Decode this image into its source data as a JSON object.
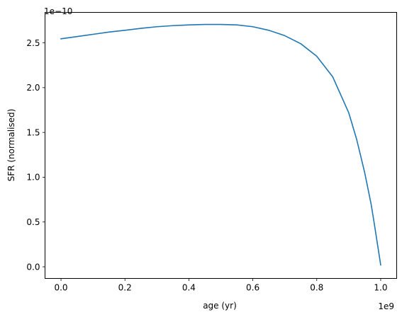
{
  "chart_data": {
    "type": "line",
    "xlabel": "age (yr)",
    "ylabel": "SFR (normalised)",
    "x_offset_label": "1e9",
    "y_offset_label": "1e−10",
    "xlim": [
      -0.05,
      1.05
    ],
    "ylim": [
      -0.13,
      2.84
    ],
    "x_ticks": [
      0.0,
      0.2,
      0.4,
      0.6,
      0.8,
      1.0
    ],
    "x_tick_labels": [
      "0.0",
      "0.2",
      "0.4",
      "0.6",
      "0.8",
      "1.0"
    ],
    "y_ticks": [
      0.0,
      0.5,
      1.0,
      1.5,
      2.0,
      2.5
    ],
    "y_tick_labels": [
      "0.0",
      "0.5",
      "1.0",
      "1.5",
      "2.0",
      "2.5"
    ],
    "grid": false,
    "series_color": "#1f77b4",
    "series": [
      {
        "x": [
          0.0,
          0.05,
          0.1,
          0.15,
          0.2,
          0.25,
          0.3,
          0.35,
          0.4,
          0.45,
          0.5,
          0.55,
          0.6,
          0.65,
          0.7,
          0.75,
          0.8,
          0.85,
          0.9,
          0.925,
          0.95,
          0.97,
          0.98,
          0.99,
          1.0
        ],
        "y": [
          2.545,
          2.57,
          2.595,
          2.62,
          2.64,
          2.662,
          2.68,
          2.692,
          2.7,
          2.705,
          2.705,
          2.7,
          2.68,
          2.64,
          2.58,
          2.49,
          2.35,
          2.12,
          1.72,
          1.42,
          1.05,
          0.7,
          0.48,
          0.25,
          0.02
        ]
      }
    ]
  }
}
